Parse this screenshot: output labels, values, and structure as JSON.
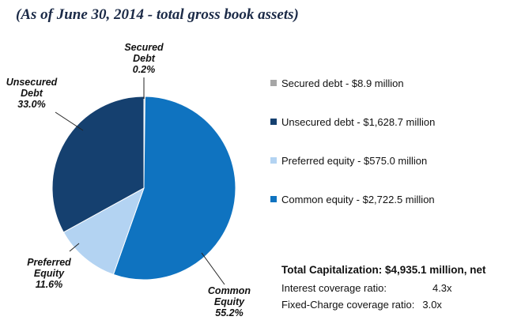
{
  "title": "(As of June 30, 2014 - total gross book assets)",
  "chart_data": {
    "type": "pie",
    "title": "(As of June 30, 2014 - total gross book assets)",
    "slices": [
      {
        "label_lines": [
          "Secured",
          "Debt"
        ],
        "percent_label": "0.2%",
        "value": 0.2,
        "color": "#a6a6a6"
      },
      {
        "label_lines": [
          "Common",
          "Equity"
        ],
        "percent_label": "55.2%",
        "value": 55.2,
        "color": "#0f73c0"
      },
      {
        "label_lines": [
          "Preferred",
          "Equity"
        ],
        "percent_label": "11.6%",
        "value": 11.6,
        "color": "#b3d3f2"
      },
      {
        "label_lines": [
          "Unsecured",
          "Debt"
        ],
        "percent_label": "33.0%",
        "value": 33.0,
        "color": "#15406f"
      }
    ],
    "legend": [
      {
        "text": "Secured debt - $8.9 million",
        "color": "#a6a6a6"
      },
      {
        "text": "Unsecured debt - $1,628.7 million",
        "color": "#15406f"
      },
      {
        "text": "Preferred equity - $575.0 million",
        "color": "#b3d3f2"
      },
      {
        "text": "Common equity - $2,722.5 million",
        "color": "#0f73c0"
      }
    ],
    "legend_position": "right"
  },
  "summary": {
    "total": "Total Capitalization: $4,935.1 million, net",
    "interest_label": "Interest coverage ratio:",
    "interest_value": "4.3x",
    "fixed_label": "Fixed-Charge coverage ratio:",
    "fixed_value": "3.0x"
  }
}
